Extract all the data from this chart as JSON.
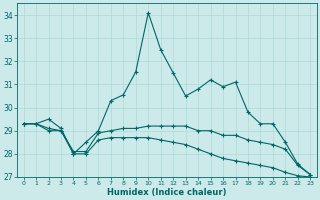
{
  "xlabel": "Humidex (Indice chaleur)",
  "bg_color": "#cceaea",
  "grid_color": "#b0d8d8",
  "line_color": "#006666",
  "xlim": [
    -0.5,
    23.5
  ],
  "ylim": [
    27,
    34.5
  ],
  "yticks": [
    27,
    28,
    29,
    30,
    31,
    32,
    33,
    34
  ],
  "xticks": [
    0,
    1,
    2,
    3,
    4,
    5,
    6,
    7,
    8,
    9,
    10,
    11,
    12,
    13,
    14,
    15,
    16,
    17,
    18,
    19,
    20,
    21,
    22,
    23
  ],
  "line1_x": [
    0,
    1,
    2,
    3,
    4,
    5,
    6,
    7,
    8,
    9,
    10,
    11,
    12,
    13,
    14,
    15,
    16,
    17,
    18,
    19,
    20,
    21,
    22,
    23
  ],
  "line1_y": [
    29.3,
    29.3,
    29.5,
    29.1,
    28.0,
    28.5,
    29.0,
    30.3,
    30.55,
    31.55,
    34.1,
    32.5,
    31.5,
    30.5,
    30.8,
    31.2,
    30.9,
    31.1,
    29.8,
    29.3,
    29.3,
    28.5,
    27.55,
    27.1
  ],
  "line2_x": [
    0,
    1,
    2,
    3,
    4,
    5,
    6,
    7,
    8,
    9,
    10,
    11,
    12,
    13,
    14,
    15,
    16,
    17,
    18,
    19,
    20,
    21,
    22,
    23
  ],
  "line2_y": [
    29.3,
    29.3,
    29.1,
    29.0,
    28.1,
    28.1,
    28.9,
    29.0,
    29.1,
    29.1,
    29.2,
    29.2,
    29.2,
    29.2,
    29.0,
    29.0,
    28.8,
    28.8,
    28.6,
    28.5,
    28.4,
    28.2,
    27.5,
    27.1
  ],
  "line3_x": [
    0,
    1,
    2,
    3,
    4,
    5,
    6,
    7,
    8,
    9,
    10,
    11,
    12,
    13,
    14,
    15,
    16,
    17,
    18,
    19,
    20,
    21,
    22,
    23
  ],
  "line3_y": [
    29.3,
    29.3,
    29.0,
    29.0,
    28.0,
    28.0,
    28.6,
    28.7,
    28.7,
    28.7,
    28.7,
    28.6,
    28.5,
    28.4,
    28.2,
    28.0,
    27.8,
    27.7,
    27.6,
    27.5,
    27.4,
    27.2,
    27.05,
    27.0
  ]
}
